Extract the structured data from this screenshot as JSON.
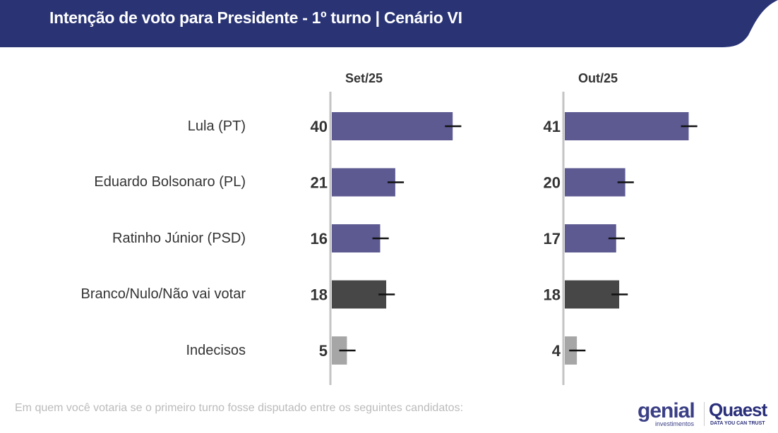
{
  "header": {
    "title": "Intenção de voto para Presidente - 1º turno | Cenário VI",
    "color": "#2a3475"
  },
  "footnote": "Em quem você votaria se o primeiro turno fosse disputado entre os seguintes candidatos:",
  "logos": {
    "genial": "genial",
    "genial_sub": "investimentos",
    "quaest": "Quaest",
    "quaest_sub": "DATA YOU CAN TRUST"
  },
  "chart_data": {
    "type": "bar",
    "orientation": "horizontal",
    "title": "Intenção de voto para Presidente - 1º turno | Cenário VI",
    "categories": [
      "Lula (PT)",
      "Eduardo Bolsonaro (PL)",
      "Ratinho Júnior (PSD)",
      "Branco/Nulo/Não vai votar",
      "Indecisos"
    ],
    "category_colors": [
      "#5d5a92",
      "#5d5a92",
      "#5d5a92",
      "#474747",
      "#a6a6a6"
    ],
    "series": [
      {
        "name": "Set/25",
        "values": [
          40,
          21,
          16,
          18,
          5
        ]
      },
      {
        "name": "Out/25",
        "values": [
          41,
          20,
          17,
          18,
          4
        ]
      }
    ],
    "error_margin": 3,
    "xlim": [
      0,
      45
    ],
    "grid": false,
    "legend": "none"
  }
}
